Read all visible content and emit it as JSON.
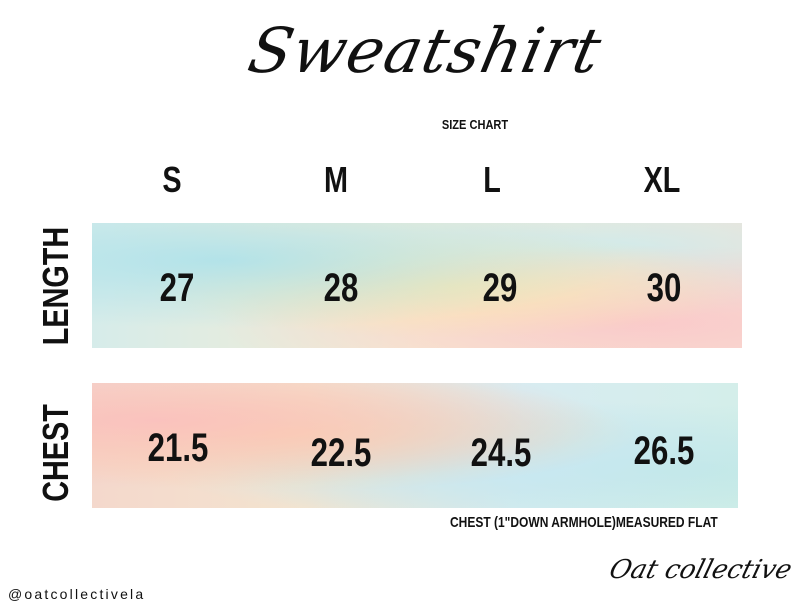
{
  "title": "Sweatshirt",
  "subtitle": "SIZE CHART",
  "sizes": [
    "S",
    "M",
    "L",
    "XL"
  ],
  "rows": [
    {
      "label": "LENGTH",
      "values": [
        "27",
        "28",
        "29",
        "30"
      ]
    },
    {
      "label": "CHEST",
      "values": [
        "21.5",
        "22.5",
        "24.5",
        "26.5"
      ]
    }
  ],
  "note": "CHEST (1\"DOWN ARMHOLE)MEASURED FLAT",
  "handle": "@oatcollectivela",
  "brand": "Oat collective"
}
